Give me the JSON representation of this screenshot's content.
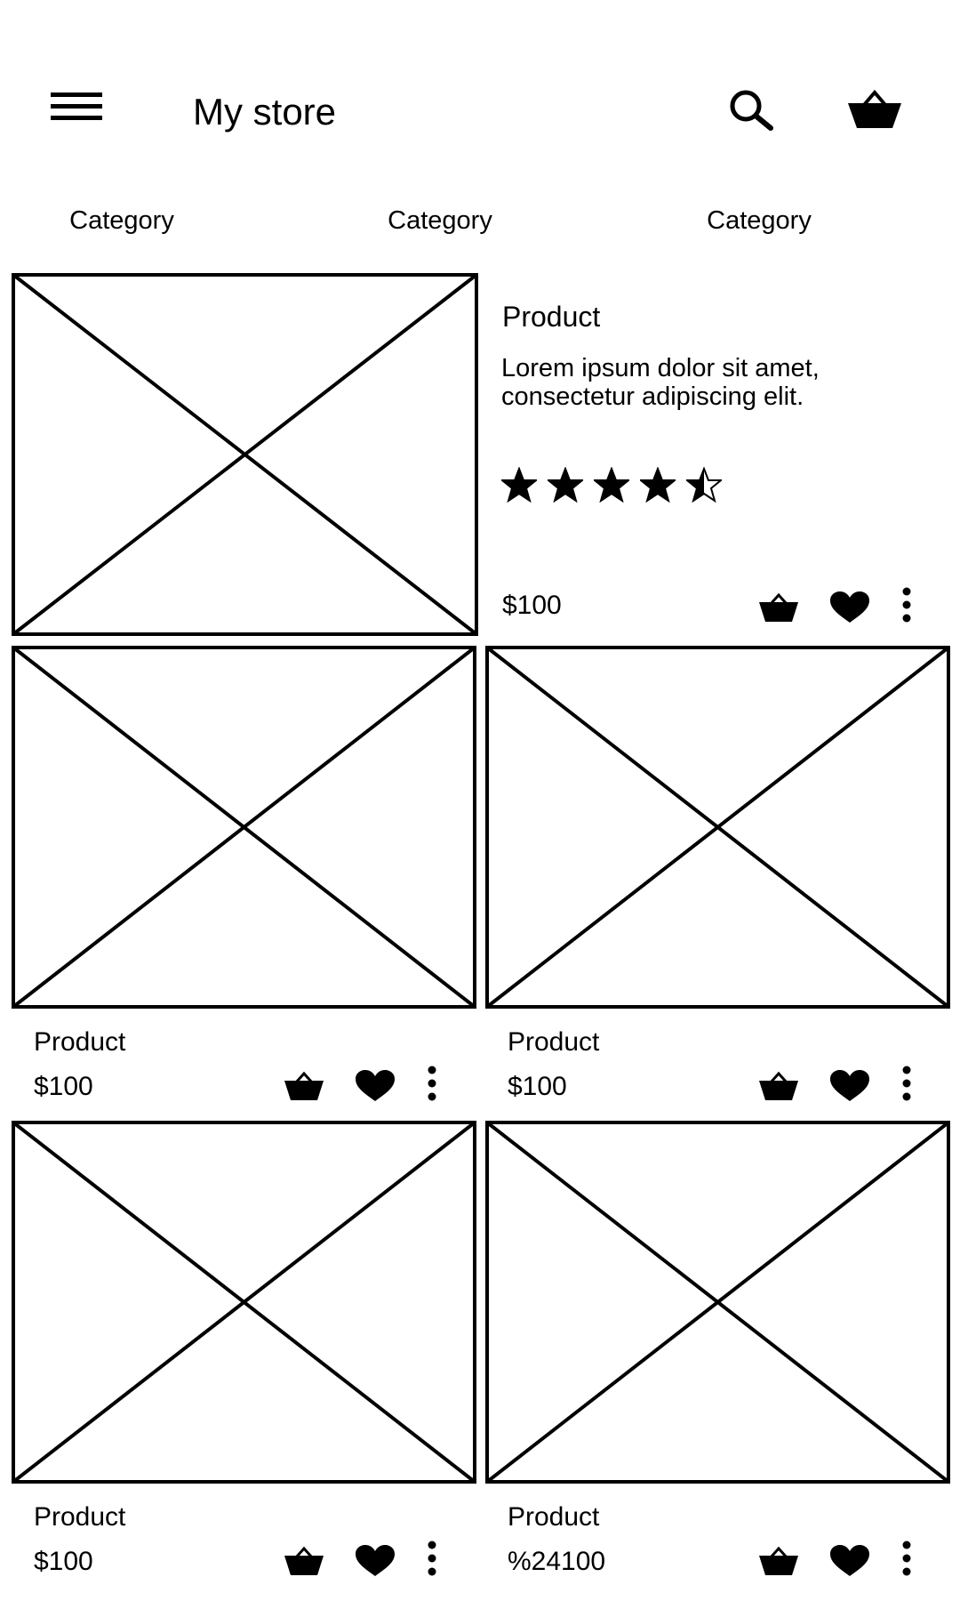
{
  "app": {
    "title": "My store"
  },
  "header": {
    "menu_icon": "hamburger-menu-icon",
    "search_icon": "search-icon",
    "cart_icon": "basket-icon"
  },
  "categories": [
    "Category",
    "Category",
    "Category"
  ],
  "featured": {
    "name": "Product",
    "description": "Lorem ipsum dolor sit amet, consectetur adipiscing elit.",
    "price": "$100",
    "rating": 4.5,
    "rating_max": 5
  },
  "products": [
    {
      "name": "Product",
      "price": "$100"
    },
    {
      "name": "Product",
      "price": "$100"
    },
    {
      "name": "Product",
      "price": "$100"
    },
    {
      "name": "Product",
      "price": "%24100"
    }
  ],
  "product_actions": [
    "basket-icon",
    "heart-icon",
    "more-vertical-icon"
  ]
}
